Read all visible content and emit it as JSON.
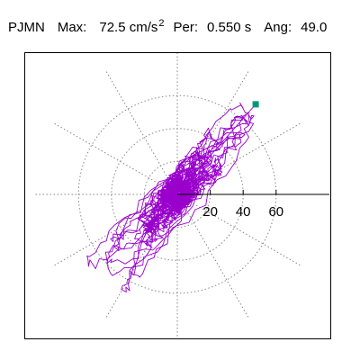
{
  "header": {
    "station": "PJMN",
    "max_label": "Max:",
    "max_value": "72.5 cm/s",
    "max_superscript": "2",
    "period_label": "Per:",
    "period_value": "0.550 s",
    "angle_label": "Ang:",
    "angle_value": "49.0"
  },
  "chart_data": {
    "type": "scatter",
    "title": "",
    "xlabel": "",
    "ylabel": "",
    "radial_ticks": [
      "20",
      "40",
      "60"
    ],
    "radial_tick_values": [
      20,
      40,
      60
    ],
    "rings": [
      20,
      40,
      60
    ],
    "max_radius": 72.5,
    "peak_point": {
      "x": 47.6,
      "y": 54.7
    },
    "orbit_angle_deg": 49.0,
    "grid": true,
    "spokes_deg": [
      0,
      30,
      60,
      90,
      120,
      150,
      180,
      210,
      240,
      270,
      300,
      330
    ],
    "trace_color": "#9900cc",
    "peak_marker_color": "#009977",
    "grid_color": "#888888"
  }
}
